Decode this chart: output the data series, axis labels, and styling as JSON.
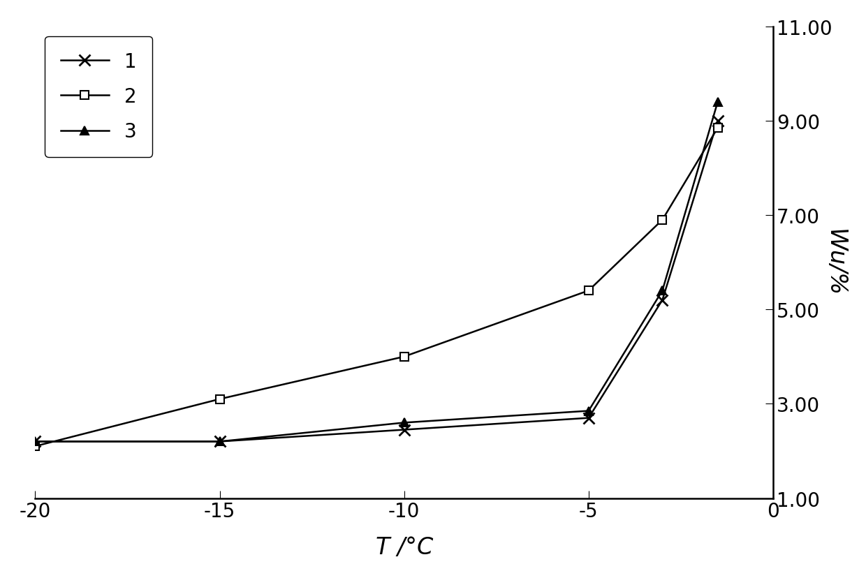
{
  "series1_x": [
    -20,
    -15,
    -10,
    -5,
    -3,
    -1.5
  ],
  "series1_y": [
    2.2,
    2.2,
    2.45,
    2.7,
    5.2,
    9.0
  ],
  "series2_x": [
    -20,
    -15,
    -10,
    -5,
    -3,
    -1.5
  ],
  "series2_y": [
    2.1,
    3.1,
    4.0,
    5.4,
    6.9,
    8.85
  ],
  "series3_x": [
    -20,
    -15,
    -10,
    -5,
    -3,
    -1.5
  ],
  "series3_y": [
    2.2,
    2.2,
    2.6,
    2.85,
    5.4,
    9.4
  ],
  "xlim": [
    -20,
    0
  ],
  "ylim": [
    1.0,
    11.0
  ],
  "yticks": [
    1.0,
    3.0,
    5.0,
    7.0,
    9.0,
    11.0
  ],
  "xticks": [
    -20,
    -15,
    -10,
    -5,
    0
  ],
  "xlabel": "T /°C",
  "ylabel": "Wu/%",
  "legend_labels": [
    "1",
    "2",
    "3"
  ],
  "bg_color": "#ffffff",
  "line_color": "#000000",
  "fontsize_label": 24,
  "fontsize_tick": 20,
  "fontsize_legend": 20
}
